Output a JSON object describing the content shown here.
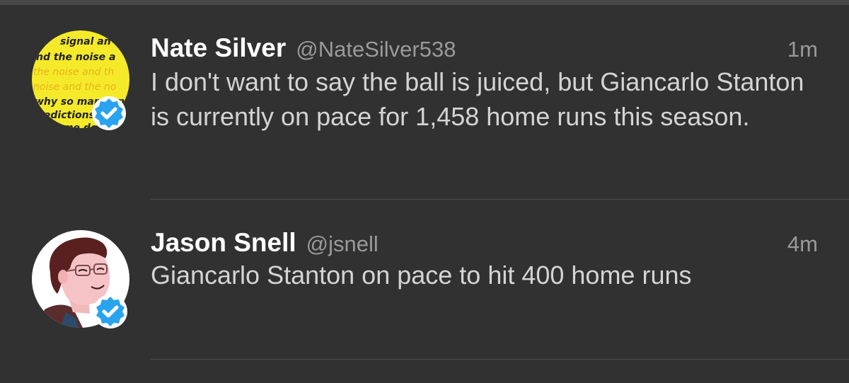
{
  "timeline": {
    "tweets": [
      {
        "name": "Nate Silver",
        "handle": "@NateSilver538",
        "time": "1m",
        "text": "I don't want to say the ball is juiced, but Giancarlo Stanton is currently on pace for 1,458 home runs this season.",
        "verified": true,
        "avatar_icon": "signal-noise-book-avatar",
        "avatar_text_lines": [
          "signal an",
          "nd the noise a",
          "the noise and th",
          "noise and the no",
          "why so many an",
          "redictions",
          "some do"
        ]
      },
      {
        "name": "Jason Snell",
        "handle": "@jsnell",
        "time": "4m",
        "text": "Giancarlo Stanton on pace to hit 400 home runs",
        "verified": true,
        "avatar_icon": "cartoon-face-avatar"
      }
    ]
  },
  "colors": {
    "background": "#313131",
    "name": "#ffffff",
    "secondary": "#9a9a9a",
    "body_text": "#d4d4d4",
    "verified": "#2aa3ef",
    "avatar_yellow": "#f5ea2a"
  }
}
